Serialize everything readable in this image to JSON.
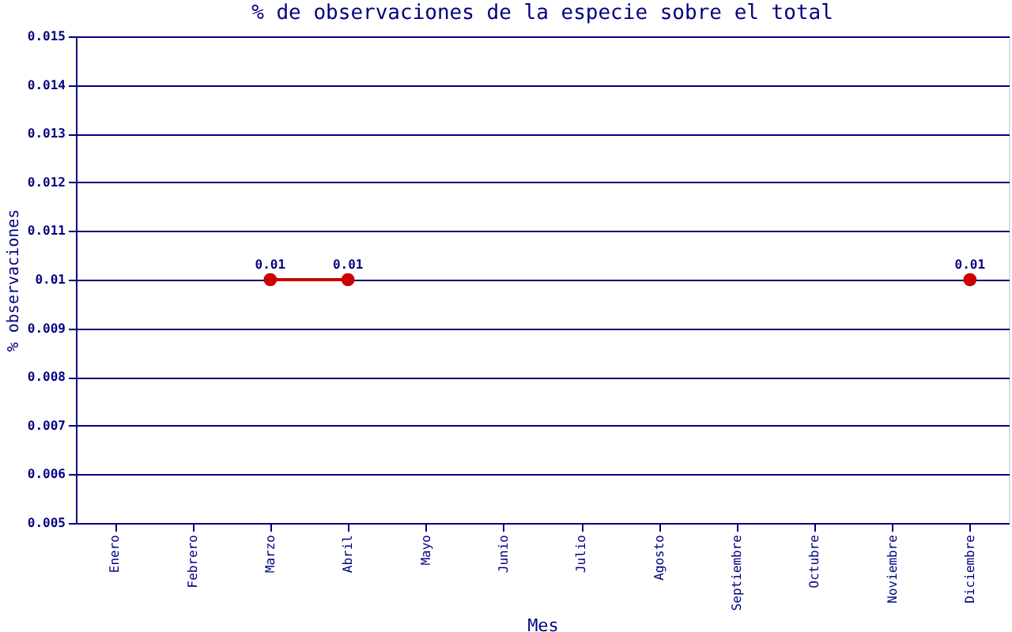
{
  "chart_data": {
    "type": "line",
    "title": "% de observaciones de la especie sobre el total",
    "xlabel": "Mes",
    "ylabel": "% observaciones",
    "categories": [
      "Enero",
      "Febrero",
      "Marzo",
      "Abril",
      "Mayo",
      "Junio",
      "Julio",
      "Agosto",
      "Septiembre",
      "Octubre",
      "Noviembre",
      "Diciembre"
    ],
    "series": [
      {
        "color": "#cc0000",
        "values": [
          null,
          null,
          0.01,
          0.01,
          null,
          null,
          null,
          null,
          null,
          null,
          null,
          0.01
        ]
      }
    ],
    "ylim": [
      0.005,
      0.015
    ],
    "yticks": [
      0.005,
      0.006,
      0.007,
      0.008,
      0.009,
      0.01,
      0.011,
      0.012,
      0.013,
      0.014,
      0.015
    ],
    "grid": "y",
    "marker": "circle",
    "data_labels": true,
    "legend": false
  }
}
